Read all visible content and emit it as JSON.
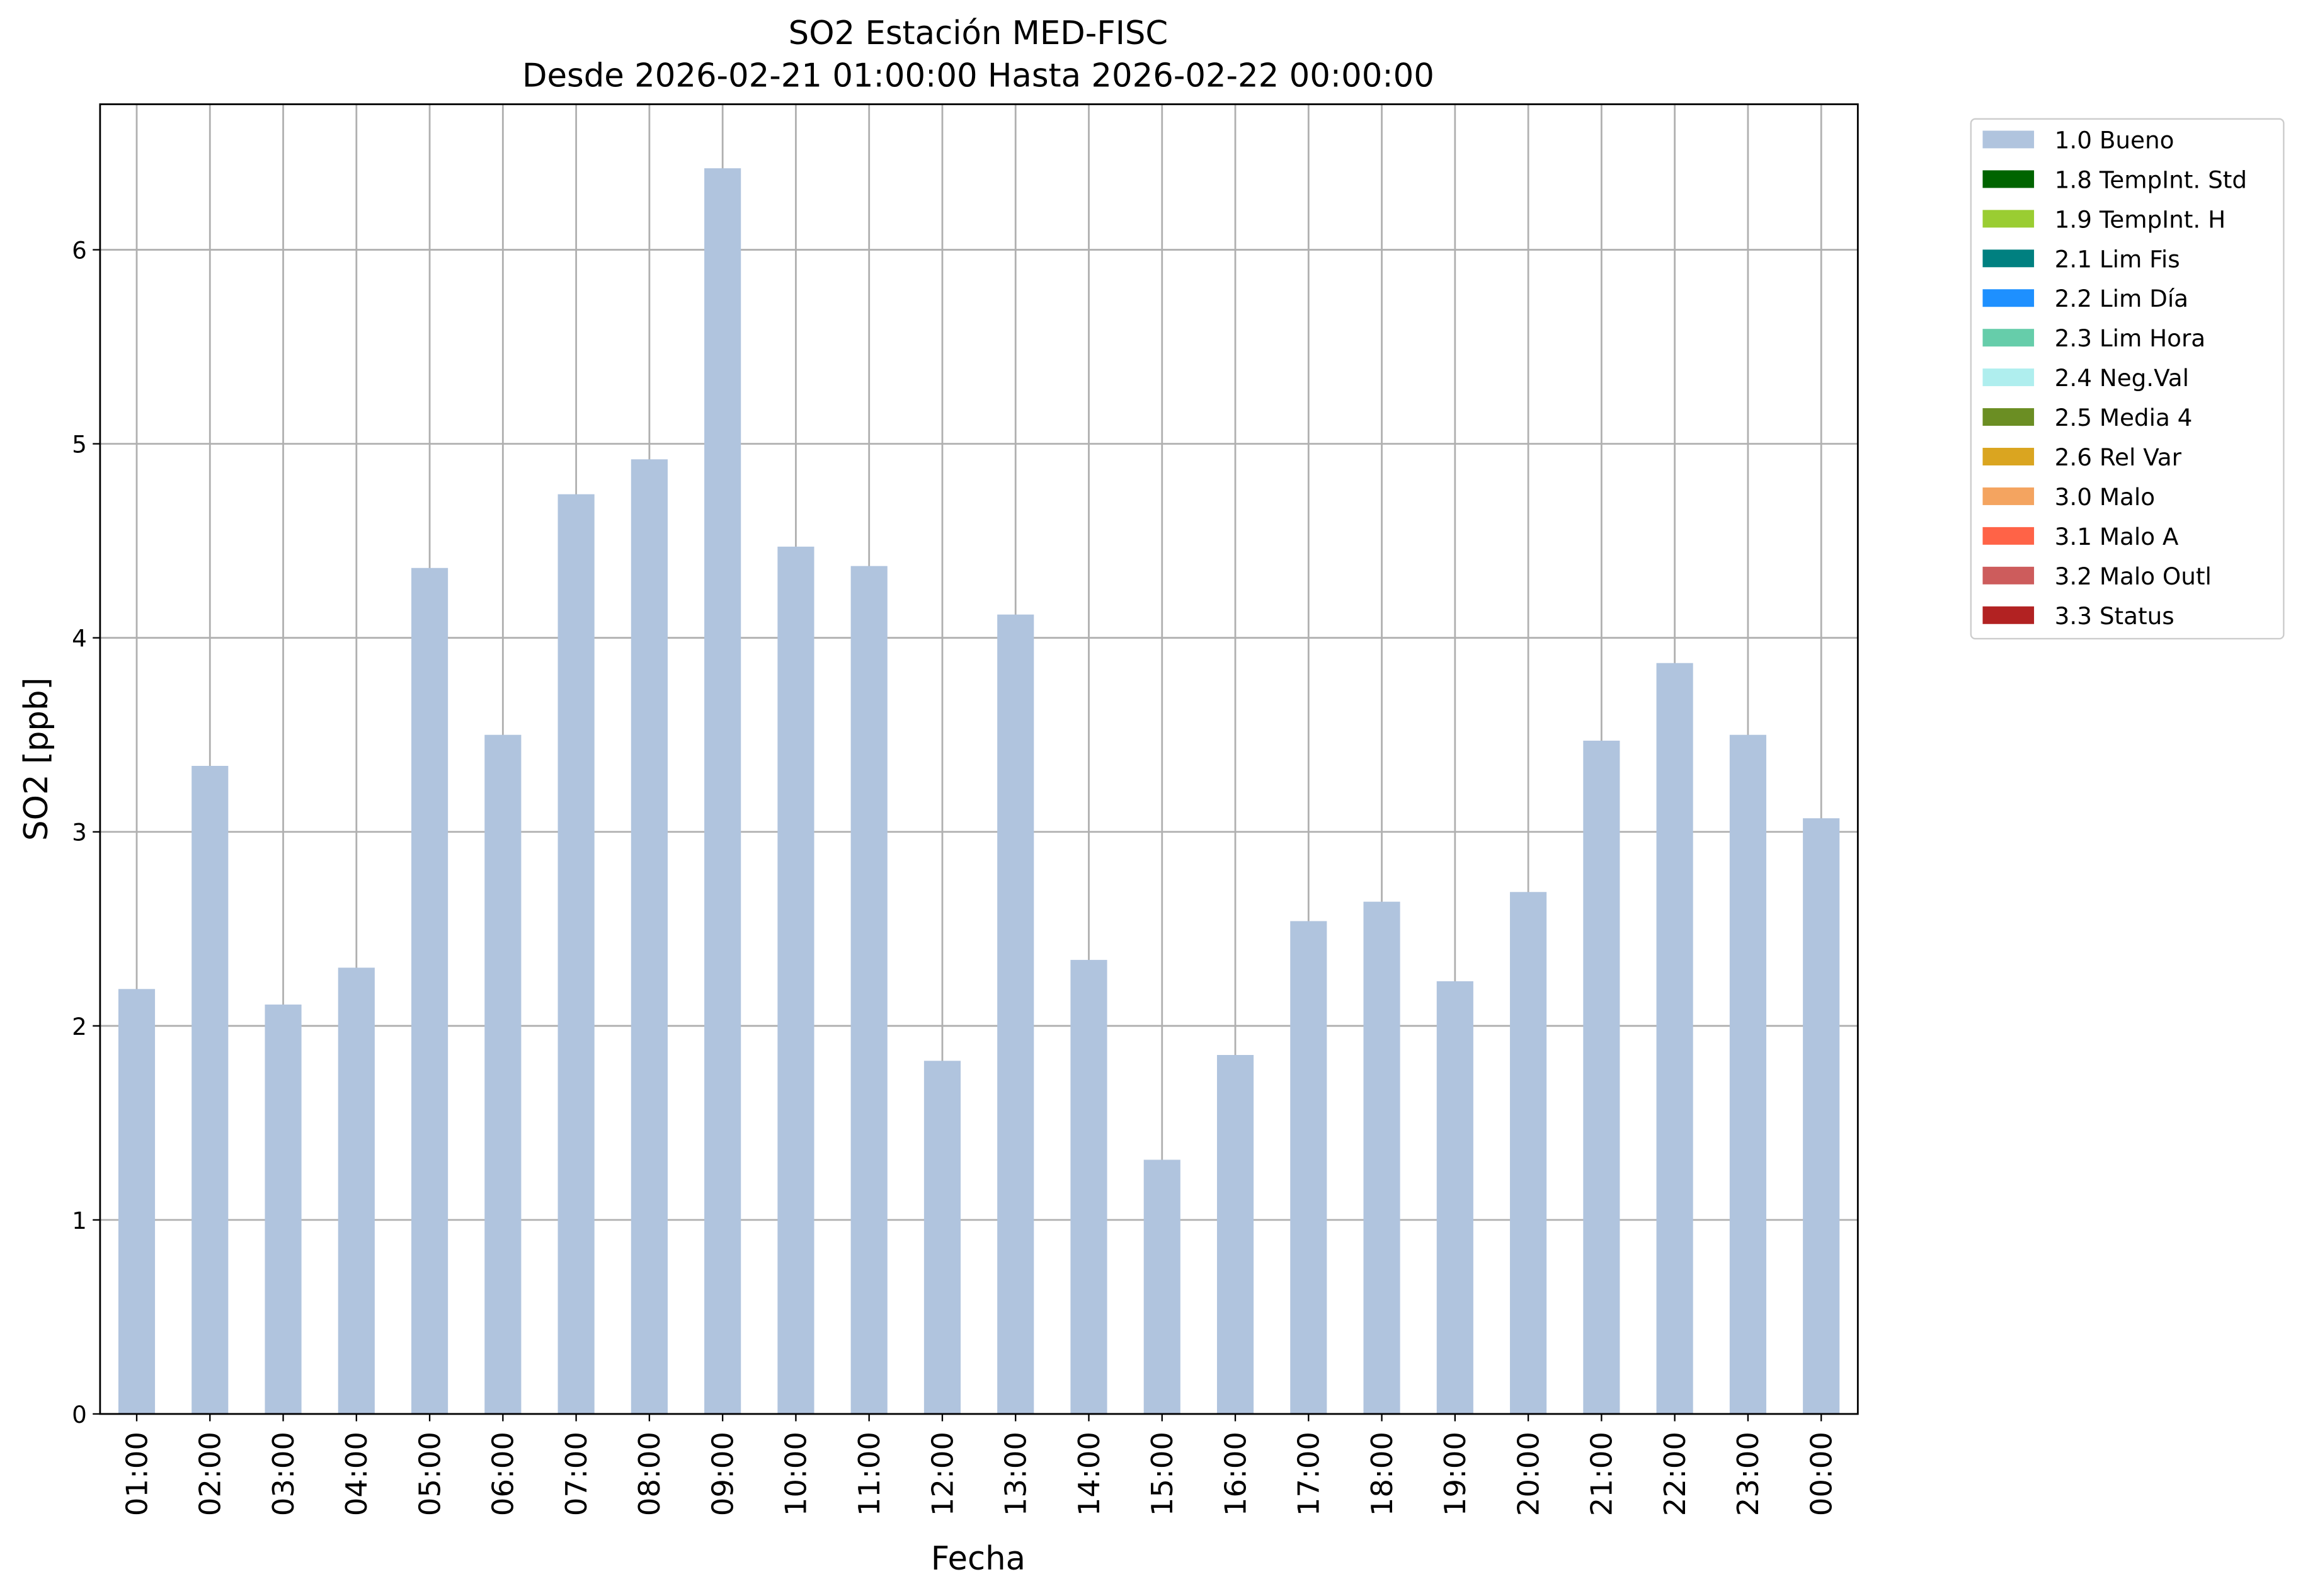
{
  "chart_data": {
    "type": "stacked-bar",
    "title": "SO2 Estación MED-FISC",
    "subtitle": "Desde 2026-02-21 01:00:00 Hasta 2026-02-22 00:00:00",
    "x_label": "Fecha",
    "y_label": "SO2 [ppb]",
    "categories": [
      "01:00",
      "02:00",
      "03:00",
      "04:00",
      "05:00",
      "06:00",
      "07:00",
      "08:00",
      "09:00",
      "10:00",
      "11:00",
      "12:00",
      "13:00",
      "14:00",
      "15:00",
      "16:00",
      "17:00",
      "18:00",
      "19:00",
      "20:00",
      "21:00",
      "22:00",
      "23:00",
      "00:00"
    ],
    "series": [
      {
        "name": "1.0 Bueno",
        "color": "#b0c4de",
        "values": [
          2.19,
          3.34,
          2.11,
          2.3,
          4.36,
          3.5,
          4.74,
          4.92,
          6.42,
          4.47,
          4.37,
          1.82,
          4.12,
          2.34,
          1.31,
          1.85,
          2.54,
          2.64,
          2.23,
          2.69,
          3.47,
          3.87,
          3.5,
          3.07
        ]
      },
      {
        "name": "1.8 TempInt. Std",
        "color": "#006400",
        "values": [
          null,
          null,
          null,
          null,
          null,
          null,
          null,
          null,
          null,
          null,
          null,
          null,
          null,
          null,
          null,
          null,
          null,
          null,
          null,
          null,
          null,
          null,
          null,
          null
        ]
      },
      {
        "name": "1.9 TempInt. H",
        "color": "#9acd32",
        "values": [
          null,
          null,
          null,
          null,
          null,
          null,
          null,
          null,
          null,
          null,
          null,
          null,
          null,
          null,
          null,
          null,
          null,
          null,
          null,
          null,
          null,
          null,
          null,
          null
        ]
      },
      {
        "name": "2.1 Lim Fis",
        "color": "#008080",
        "values": [
          null,
          null,
          null,
          null,
          null,
          null,
          null,
          null,
          null,
          null,
          null,
          null,
          null,
          null,
          null,
          null,
          null,
          null,
          null,
          null,
          null,
          null,
          null,
          null
        ]
      },
      {
        "name": "2.2 Lim Día",
        "color": "#1e90ff",
        "values": [
          null,
          null,
          null,
          null,
          null,
          null,
          null,
          null,
          null,
          null,
          null,
          null,
          null,
          null,
          null,
          null,
          null,
          null,
          null,
          null,
          null,
          null,
          null,
          null
        ]
      },
      {
        "name": "2.3 Lim Hora",
        "color": "#66cdaa",
        "values": [
          null,
          null,
          null,
          null,
          null,
          null,
          null,
          null,
          null,
          null,
          null,
          null,
          null,
          null,
          null,
          null,
          null,
          null,
          null,
          null,
          null,
          null,
          null,
          null
        ]
      },
      {
        "name": "2.4 Neg.Val",
        "color": "#afeeee",
        "values": [
          null,
          null,
          null,
          null,
          null,
          null,
          null,
          null,
          null,
          null,
          null,
          null,
          null,
          null,
          null,
          null,
          null,
          null,
          null,
          null,
          null,
          null,
          null,
          null
        ]
      },
      {
        "name": "2.5 Media 4",
        "color": "#6b8e23",
        "values": [
          null,
          null,
          null,
          null,
          null,
          null,
          null,
          null,
          null,
          null,
          null,
          null,
          null,
          null,
          null,
          null,
          null,
          null,
          null,
          null,
          null,
          null,
          null,
          null
        ]
      },
      {
        "name": "2.6 Rel Var",
        "color": "#daa520",
        "values": [
          null,
          null,
          null,
          null,
          null,
          null,
          null,
          null,
          null,
          null,
          null,
          null,
          null,
          null,
          null,
          null,
          null,
          null,
          null,
          null,
          null,
          null,
          null,
          null
        ]
      },
      {
        "name": "3.0 Malo",
        "color": "#f4a460",
        "values": [
          null,
          null,
          null,
          null,
          null,
          null,
          null,
          null,
          null,
          null,
          null,
          null,
          null,
          null,
          null,
          null,
          null,
          null,
          null,
          null,
          null,
          null,
          null,
          null
        ]
      },
      {
        "name": "3.1 Malo A",
        "color": "#ff6347",
        "values": [
          null,
          null,
          null,
          null,
          null,
          null,
          null,
          null,
          null,
          null,
          null,
          null,
          null,
          null,
          null,
          null,
          null,
          null,
          null,
          null,
          null,
          null,
          null,
          null
        ]
      },
      {
        "name": "3.2 Malo Outl",
        "color": "#cd5c5c",
        "values": [
          null,
          null,
          null,
          null,
          null,
          null,
          null,
          null,
          null,
          null,
          null,
          null,
          null,
          null,
          null,
          null,
          null,
          null,
          null,
          null,
          null,
          null,
          null,
          null
        ]
      },
      {
        "name": "3.3 Status",
        "color": "#b22222",
        "values": [
          null,
          null,
          null,
          null,
          null,
          null,
          null,
          null,
          null,
          null,
          null,
          null,
          null,
          null,
          null,
          null,
          null,
          null,
          null,
          null,
          null,
          null,
          null,
          null
        ]
      }
    ],
    "ylim": [
      0,
      6.75
    ],
    "yticks": [
      0,
      1,
      2,
      3,
      4,
      5,
      6
    ],
    "grid": true,
    "legend": "outside-right"
  }
}
